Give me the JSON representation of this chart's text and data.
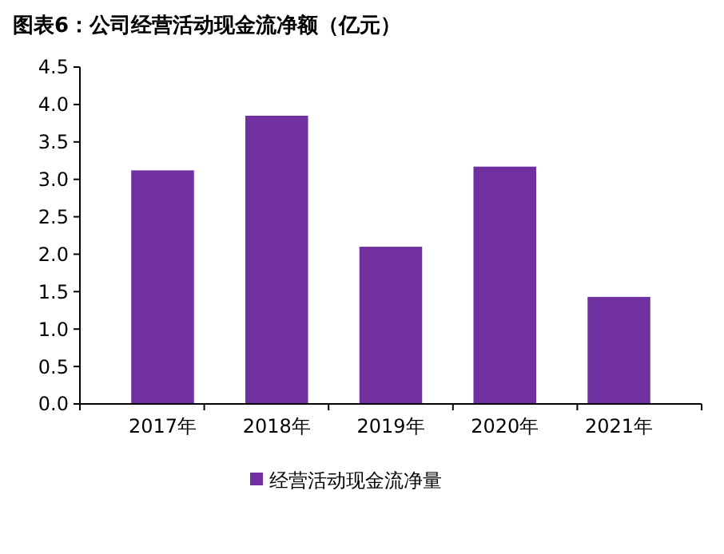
{
  "chart_data": {
    "type": "bar",
    "title": "图表6：公司经营活动现金流净额（亿元）",
    "categories": [
      "2017年",
      "2018年",
      "2019年",
      "2020年",
      "2021年"
    ],
    "series": [
      {
        "name": "经营活动现金流净量",
        "color": "#7030a0",
        "values": [
          3.12,
          3.85,
          2.1,
          3.17,
          1.43
        ]
      }
    ],
    "ylim": [
      0,
      4.5
    ],
    "yticks": [
      {
        "value": 0,
        "label": "0.0"
      },
      0.5,
      {
        "value": 1,
        "label": "1.0"
      },
      1.5,
      {
        "value": 2,
        "label": "2.0"
      },
      2.5,
      {
        "value": 3,
        "label": "3.0"
      },
      3.5,
      {
        "value": 4,
        "label": "4.0"
      },
      4.5
    ],
    "legend": "bottom"
  }
}
